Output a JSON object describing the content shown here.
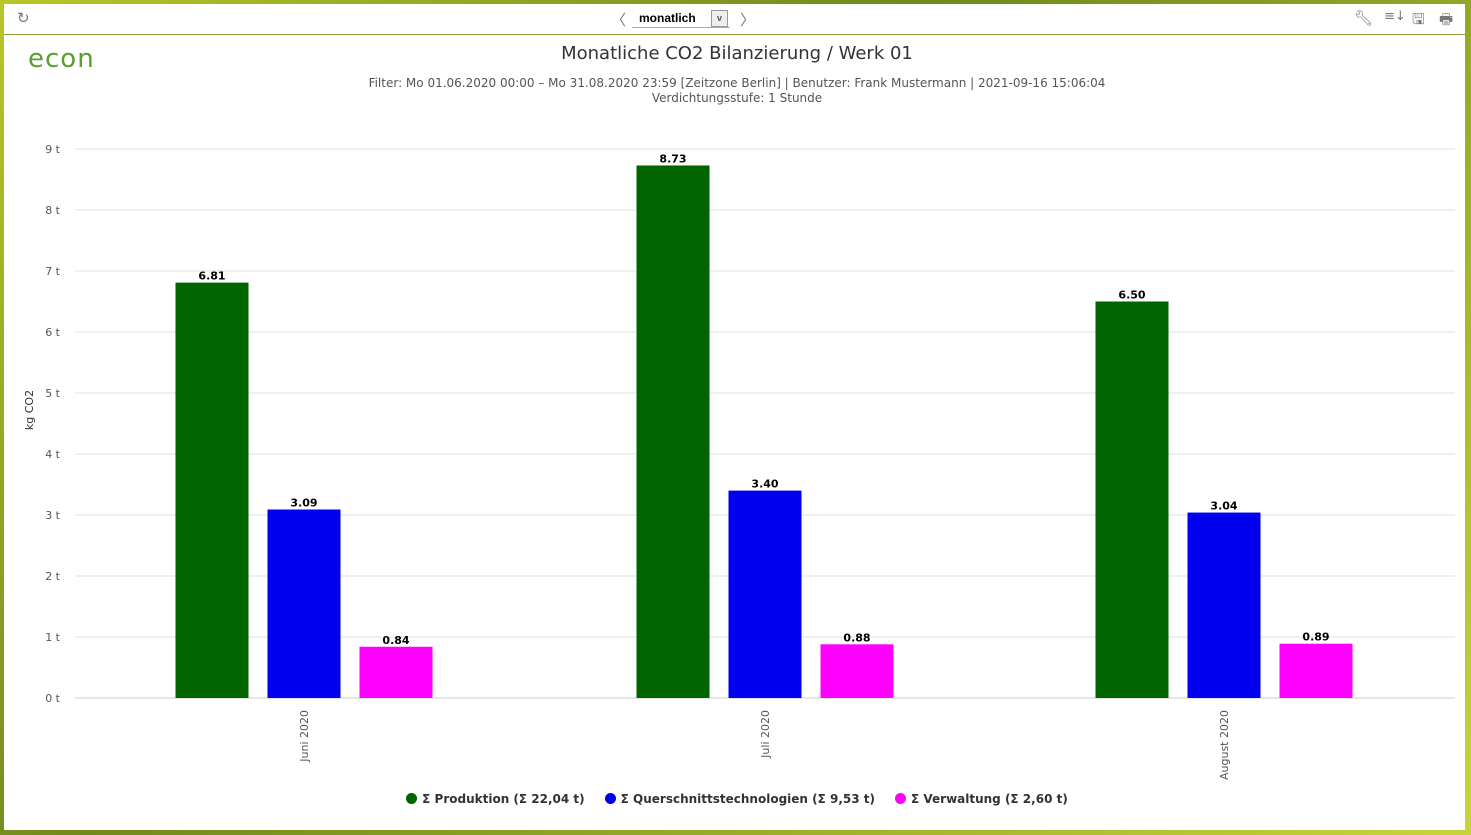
{
  "toolbar": {
    "period": "monatlich",
    "icons": [
      "refresh-icon",
      "chevron-left-icon",
      "chevron-right-icon",
      "wrench-icon",
      "sort-icon",
      "save-icon",
      "print-icon"
    ]
  },
  "logo": "econ",
  "header": {
    "title": "Monatliche CO2 Bilanzierung / Werk 01",
    "filter": "Filter: Mo 01.06.2020 00:00 – Mo 31.08.2020 23:59 [Zeitzone Berlin] | Benutzer: Frank Mustermann | 2021-09-16 15:06:04",
    "density": "Verdichtungsstufe: 1 Stunde"
  },
  "chart_data": {
    "type": "bar",
    "ylabel": "kg CO2",
    "ylim": [
      0,
      9
    ],
    "yticks": [
      "0 t",
      "1 t",
      "2 t",
      "3 t",
      "4 t",
      "5 t",
      "6 t",
      "7 t",
      "8 t",
      "9 t"
    ],
    "categories": [
      "Juni 2020",
      "Juli 2020",
      "August 2020"
    ],
    "grid": true,
    "legend_position": "bottom",
    "series": [
      {
        "name": "Σ Produktion (Σ 22,04 t)",
        "color": "#006400",
        "values": [
          6.81,
          8.73,
          6.5
        ],
        "labels": [
          "6.81",
          "8.73",
          "6.50"
        ]
      },
      {
        "name": "Σ Querschnittstechnologien (Σ 9,53 t)",
        "color": "#0000ee",
        "values": [
          3.09,
          3.4,
          3.04
        ],
        "labels": [
          "3.09",
          "3.40",
          "3.04"
        ]
      },
      {
        "name": "Σ Verwaltung (Σ 2,60 t)",
        "color": "#ff00ff",
        "values": [
          0.84,
          0.88,
          0.89
        ],
        "labels": [
          "0.84",
          "0.88",
          "0.89"
        ]
      }
    ]
  }
}
